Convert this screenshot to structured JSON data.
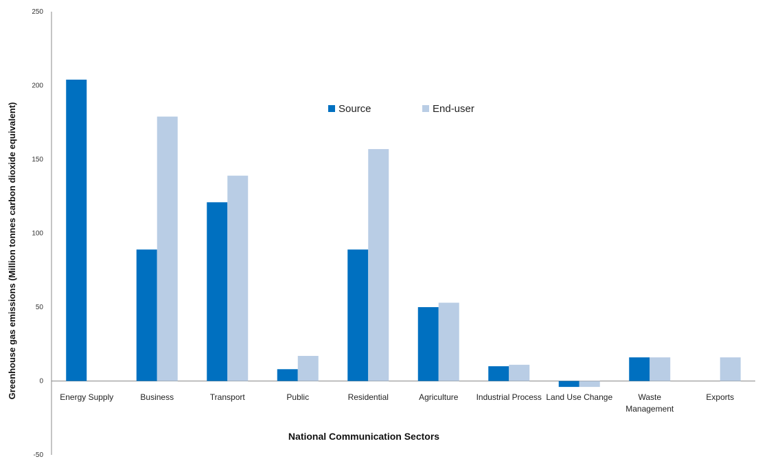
{
  "chart_data": {
    "type": "bar",
    "categories": [
      [
        "Energy Supply"
      ],
      [
        "Business"
      ],
      [
        "Transport"
      ],
      [
        "Public"
      ],
      [
        "Residential"
      ],
      [
        "Agriculture"
      ],
      [
        "Industrial Process"
      ],
      [
        "Land Use Change"
      ],
      [
        "Waste",
        "Management"
      ],
      [
        "Exports"
      ]
    ],
    "series": [
      {
        "name": "Source",
        "color": "#0070C0",
        "values": [
          204,
          89,
          121,
          8,
          89,
          50,
          10,
          -4,
          16,
          0
        ]
      },
      {
        "name": "End-user",
        "color": "#B9CDE5",
        "values": [
          0,
          179,
          139,
          17,
          157,
          53,
          11,
          -4,
          16,
          16
        ]
      }
    ],
    "title": "",
    "xlabel": "National Communication Sectors",
    "ylabel": "Greenhouse gas emissions (Million  tonnes carbon dioxide  equivalent)",
    "ylim": [
      -50,
      250
    ],
    "yticks": [
      250,
      200,
      150,
      100,
      50,
      0,
      -50
    ],
    "grid": false,
    "legend_position": "top-center"
  }
}
